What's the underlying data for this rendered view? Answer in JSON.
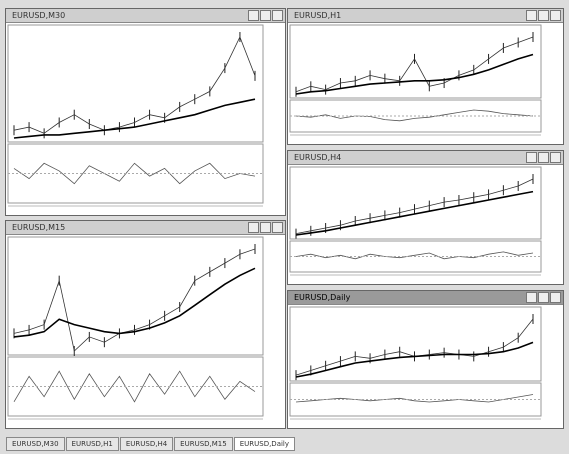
{
  "windows": [
    {
      "title": "EURUSD,M30",
      "price": [
        20,
        22,
        18,
        25,
        30,
        24,
        20,
        22,
        25,
        30,
        28,
        35,
        40,
        45,
        60,
        80,
        55
      ],
      "ma": [
        15,
        16,
        17,
        17,
        18,
        19,
        20,
        21,
        22,
        24,
        26,
        28,
        30,
        33,
        36,
        38,
        40
      ],
      "osc": [
        60,
        40,
        70,
        55,
        30,
        65,
        50,
        35,
        70,
        45,
        60,
        30,
        55,
        70,
        40,
        50,
        45
      ]
    },
    {
      "title": "EURUSD,H1",
      "price": [
        40,
        45,
        42,
        48,
        50,
        55,
        52,
        50,
        70,
        45,
        48,
        55,
        60,
        70,
        80,
        85,
        90
      ],
      "ma": [
        38,
        40,
        41,
        43,
        45,
        47,
        48,
        49,
        50,
        50,
        51,
        53,
        56,
        60,
        65,
        70,
        74
      ],
      "osc": [
        50,
        45,
        55,
        40,
        50,
        48,
        35,
        30,
        40,
        45,
        55,
        65,
        75,
        70,
        60,
        55,
        50
      ]
    },
    {
      "title": "EURUSD,H4",
      "price": [
        10,
        14,
        18,
        22,
        28,
        32,
        36,
        40,
        45,
        50,
        55,
        58,
        62,
        66,
        72,
        78,
        88
      ],
      "ma": [
        8,
        11,
        14,
        18,
        22,
        26,
        30,
        34,
        38,
        42,
        46,
        50,
        54,
        58,
        62,
        66,
        70
      ],
      "osc": [
        50,
        60,
        45,
        55,
        40,
        60,
        50,
        45,
        55,
        65,
        40,
        50,
        45,
        60,
        70,
        55,
        65
      ]
    },
    {
      "title": "EURUSD,M15",
      "price": [
        40,
        42,
        45,
        70,
        30,
        38,
        35,
        40,
        42,
        45,
        50,
        55,
        70,
        75,
        80,
        85,
        88
      ],
      "ma": [
        38,
        39,
        41,
        48,
        45,
        43,
        41,
        40,
        41,
        43,
        46,
        50,
        56,
        62,
        68,
        73,
        77
      ],
      "osc": [
        20,
        70,
        30,
        80,
        25,
        75,
        30,
        70,
        20,
        75,
        35,
        80,
        30,
        70,
        25,
        60,
        40
      ]
    },
    {
      "title": "EURUSD,Daily",
      "price": [
        20,
        25,
        30,
        35,
        40,
        38,
        42,
        45,
        40,
        42,
        44,
        42,
        40,
        45,
        50,
        60,
        80
      ],
      "ma": [
        18,
        21,
        25,
        29,
        33,
        35,
        37,
        39,
        40,
        41,
        42,
        42,
        42,
        43,
        45,
        49,
        55
      ],
      "osc": [
        40,
        45,
        50,
        55,
        50,
        45,
        50,
        55,
        45,
        40,
        45,
        50,
        45,
        40,
        50,
        60,
        70
      ]
    }
  ],
  "tabs": [
    "EURUSD,M30",
    "EURUSD,H1",
    "EURUSD,H4",
    "EURUSD,M15",
    "EURUSD,Daily"
  ],
  "active_tab": 4
}
